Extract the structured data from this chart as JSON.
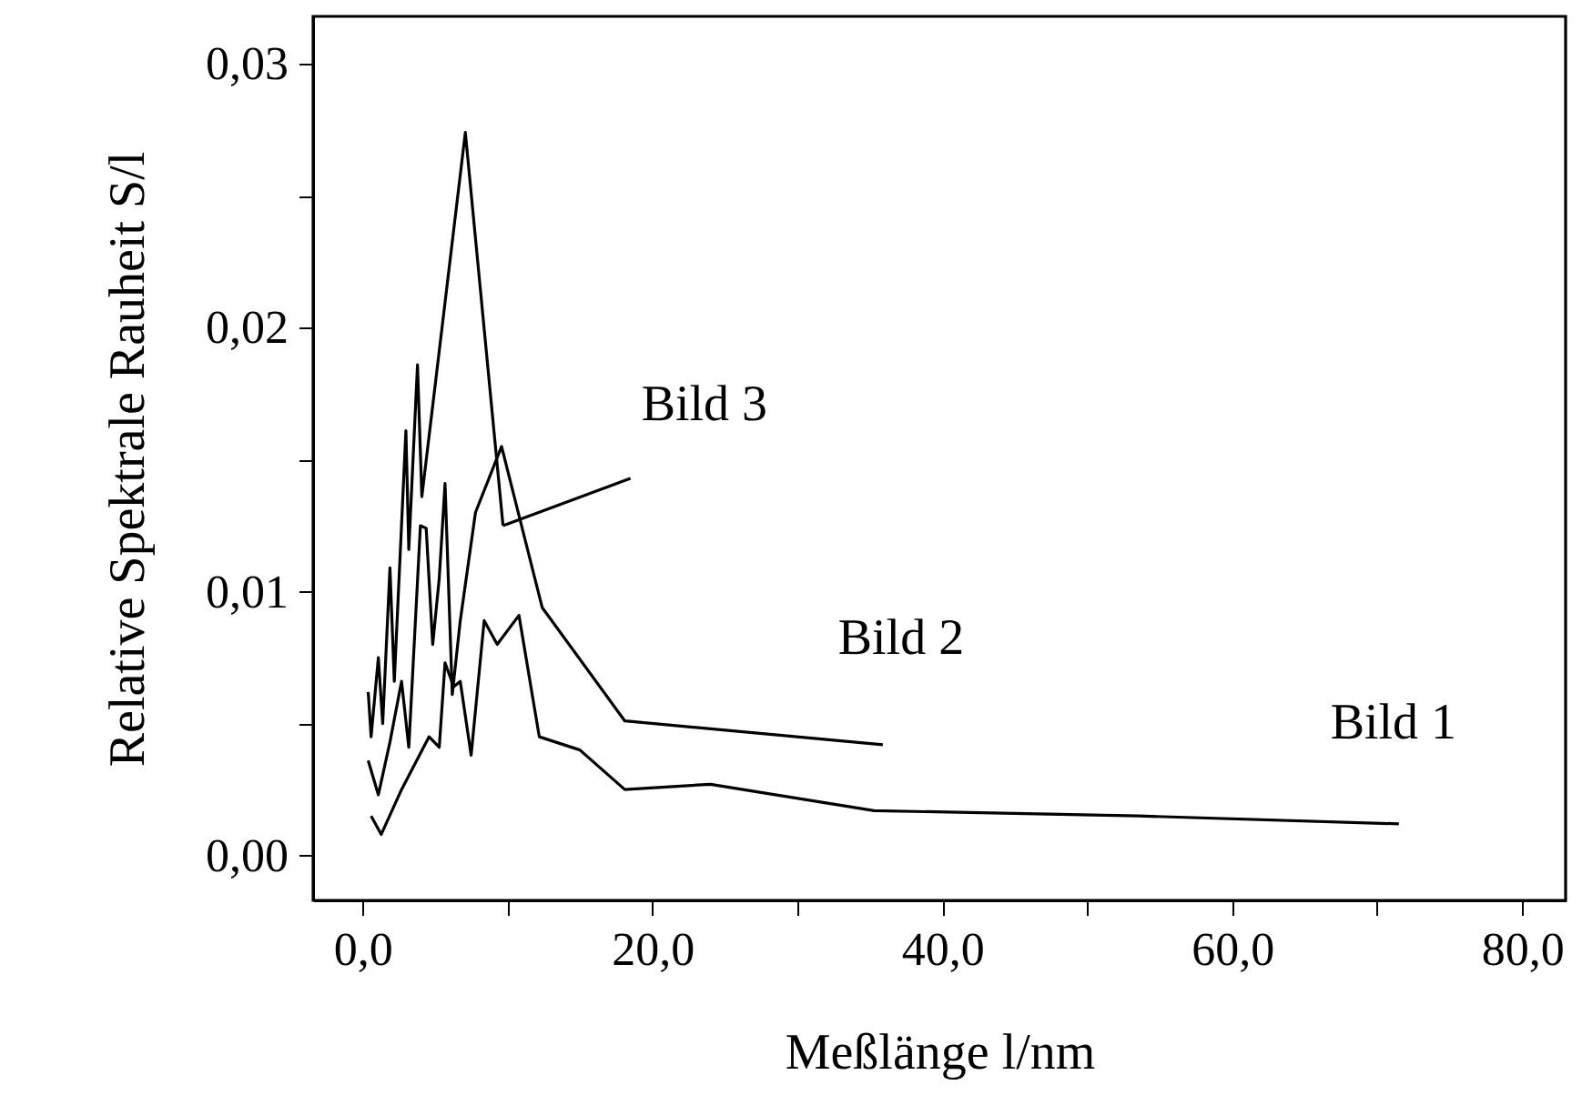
{
  "chart_data": {
    "type": "line",
    "xlabel": "Meßlänge l/nm",
    "ylabel": "Relative Spektrale Rauheit S/l",
    "xlim": [
      -3.4,
      83
    ],
    "ylim": [
      -0.0017,
      0.0318
    ],
    "xticks": [
      {
        "value": 0,
        "label": "0,0"
      },
      {
        "value": 10,
        "label": null
      },
      {
        "value": 20,
        "label": "20,0"
      },
      {
        "value": 30,
        "label": null
      },
      {
        "value": 40,
        "label": "40,0"
      },
      {
        "value": 50,
        "label": null
      },
      {
        "value": 60,
        "label": "60,0"
      },
      {
        "value": 70,
        "label": null
      },
      {
        "value": 80,
        "label": "80,0"
      }
    ],
    "yticks": [
      {
        "value": 0,
        "label": "0,00"
      },
      {
        "value": 0.005,
        "label": null
      },
      {
        "value": 0.01,
        "label": "0,01"
      },
      {
        "value": 0.015,
        "label": null
      },
      {
        "value": 0.02,
        "label": "0,02"
      },
      {
        "value": 0.025,
        "label": null
      },
      {
        "value": 0.03,
        "label": "0,03"
      }
    ],
    "grid": false,
    "series": [
      {
        "name": "Bild 1",
        "color": "#000000",
        "x": [
          0.6,
          1.3,
          2.7,
          4.6,
          5.3,
          5.7,
          6.3,
          6.75,
          7.5,
          8.4,
          9.3,
          10.8,
          12.2,
          15,
          18.1,
          24,
          35.3,
          53.5,
          71.5
        ],
        "values": [
          0.0015,
          0.0008,
          0.0025,
          0.0045,
          0.0041,
          0.0073,
          0.0064,
          0.0066,
          0.0038,
          0.0089,
          0.008,
          0.0091,
          0.0045,
          0.004,
          0.0025,
          0.0027,
          0.0017,
          0.0015,
          0.0012
        ]
      },
      {
        "name": "Bild 2",
        "color": "#000000",
        "x": [
          0.4,
          1.1,
          1.9,
          2.7,
          3.2,
          4.0,
          4.4,
          4.85,
          5.3,
          5.7,
          6.2,
          6.75,
          7.8,
          9.6,
          12.4,
          18.1,
          35.9
        ],
        "values": [
          0.0036,
          0.0023,
          0.0043,
          0.0066,
          0.0041,
          0.0125,
          0.0124,
          0.008,
          0.0105,
          0.0141,
          0.0061,
          0.0089,
          0.013,
          0.0155,
          0.0094,
          0.0051,
          0.0042
        ]
      },
      {
        "name": "Bild 3",
        "color": "#000000",
        "x": [
          0.4,
          0.6,
          1.1,
          1.4,
          1.9,
          2.2,
          3.0,
          3.2,
          3.8,
          4.1,
          7.1,
          9.7
        ],
        "values": [
          0.0062,
          0.0045,
          0.0075,
          0.005,
          0.0109,
          0.0066,
          0.0161,
          0.0116,
          0.0186,
          0.0136,
          0.0274,
          0.0125
        ]
      }
    ]
  }
}
